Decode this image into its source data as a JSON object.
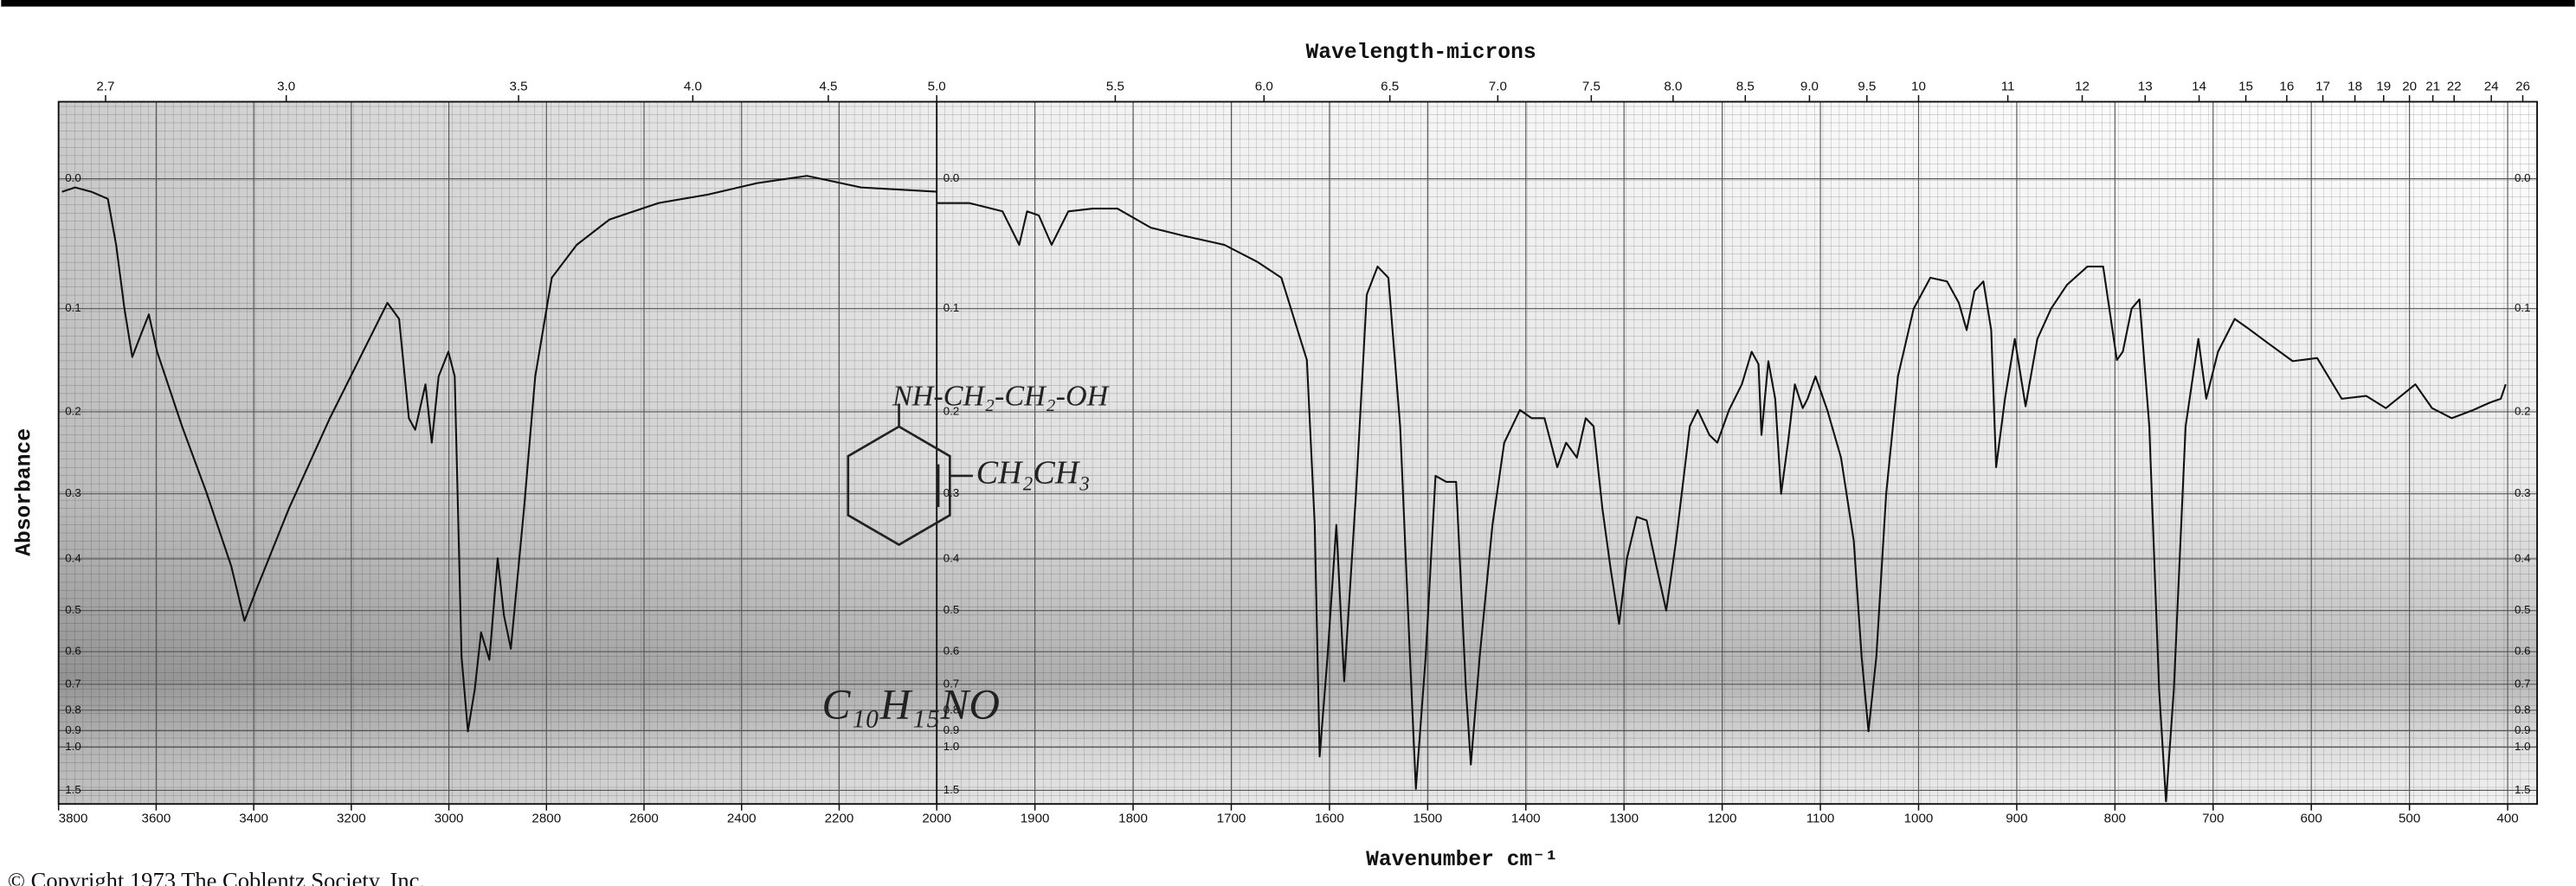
{
  "title": "Wavelength-microns",
  "xlabel": "Wavenumber cm⁻¹",
  "ylabel": "Absorbance",
  "footer": "© Copyright 1973  The Coblentz Society, Inc.",
  "annotations": [
    "NH-CH₂-CH₂-OH",
    "CH₂CH₃",
    "C₁₀H₁₅NO"
  ],
  "chart_data": [
    {
      "type": "line",
      "color": "#111111",
      "yscale": "transmittance",
      "grid": true,
      "xlim": [
        3800,
        2000
      ],
      "xticks": [
        3800,
        3600,
        3400,
        3200,
        3000,
        2800,
        2600,
        2400,
        2200
      ],
      "x2ticks": [
        2.7,
        {
          "value": 3,
          "label": "3.0"
        },
        3.5,
        {
          "value": 4,
          "label": "4.0"
        },
        4.5
      ],
      "ylim": [
        -0.05,
        2
      ],
      "yticks": [
        {
          "value": 0,
          "label": "0.0"
        },
        0.1,
        0.2,
        0.3,
        0.4,
        0.5,
        0.6,
        0.7,
        0.8,
        0.9,
        {
          "value": 1,
          "label": "1.0"
        },
        1.5
      ],
      "x": [
        3793,
        3766,
        3733,
        3699,
        3682,
        3665,
        3649,
        3632,
        3615,
        3598,
        3547,
        3497,
        3446,
        3419,
        3396,
        3328,
        3244,
        3176,
        3126,
        3102,
        3082,
        3069,
        3048,
        3035,
        3021,
        3001,
        2988,
        2974,
        2961,
        2947,
        2934,
        2917,
        2900,
        2887,
        2873,
        2846,
        2823,
        2789,
        2738,
        2671,
        2570,
        2469,
        2368,
        2266,
        2155,
        2000
      ],
      "values": [
        0.009,
        0.006,
        0.009,
        0.014,
        0.048,
        0.1,
        0.144,
        0.124,
        0.105,
        0.139,
        0.216,
        0.298,
        0.413,
        0.523,
        0.46,
        0.321,
        0.207,
        0.139,
        0.095,
        0.109,
        0.207,
        0.22,
        0.171,
        0.235,
        0.163,
        0.139,
        0.163,
        0.614,
        0.903,
        0.719,
        0.55,
        0.623,
        0.399,
        0.511,
        0.592,
        0.321,
        0.163,
        0.074,
        0.048,
        0.029,
        0.017,
        0.011,
        0.003,
        -0.002,
        0.006,
        0.009
      ]
    },
    {
      "type": "line",
      "color": "#111111",
      "yscale": "transmittance",
      "grid": true,
      "xlim": [
        2000,
        370
      ],
      "xticks": [
        2000,
        1900,
        1800,
        1700,
        1600,
        1500,
        1400,
        1300,
        1200,
        1100,
        1000,
        900,
        800,
        700,
        600,
        500,
        400
      ],
      "x2ticks": [
        {
          "value": 5,
          "label": "5.0"
        },
        5.5,
        {
          "value": 6,
          "label": "6.0"
        },
        6.5,
        {
          "value": 7,
          "label": "7.0"
        },
        7.5,
        {
          "value": 8,
          "label": "8.0"
        },
        8.5,
        {
          "value": 9,
          "label": "9.0"
        },
        9.5,
        10,
        11,
        12,
        13,
        14,
        15,
        16,
        17,
        18,
        19,
        20,
        21,
        22,
        24,
        26
      ],
      "ylim": [
        -0.05,
        2
      ],
      "yticks": [
        {
          "value": 0,
          "label": "0.0"
        },
        0.1,
        0.2,
        0.3,
        0.4,
        0.5,
        0.6,
        0.7,
        0.8,
        0.9,
        {
          "value": 1,
          "label": "1.0"
        },
        1.5
      ],
      "x": [
        2000,
        1967,
        1933,
        1916,
        1908,
        1896,
        1883,
        1866,
        1841,
        1816,
        1782,
        1749,
        1707,
        1674,
        1649,
        1623,
        1615,
        1610,
        1602,
        1593,
        1585,
        1573,
        1562,
        1551,
        1540,
        1528,
        1518,
        1512,
        1502,
        1492,
        1481,
        1471,
        1461,
        1456,
        1447,
        1434,
        1422,
        1406,
        1394,
        1381,
        1368,
        1359,
        1348,
        1339,
        1331,
        1322,
        1314,
        1305,
        1297,
        1287,
        1277,
        1267,
        1257,
        1247,
        1233,
        1225,
        1213,
        1205,
        1193,
        1180,
        1170,
        1163,
        1160,
        1153,
        1146,
        1140,
        1133,
        1126,
        1118,
        1113,
        1105,
        1093,
        1079,
        1066,
        1058,
        1051,
        1043,
        1033,
        1021,
        1005,
        988,
        971,
        959,
        951,
        943,
        934,
        926,
        921,
        912,
        902,
        891,
        879,
        865,
        849,
        828,
        812,
        798,
        792,
        783,
        775,
        765,
        755,
        748,
        740,
        728,
        715,
        707,
        695,
        678,
        665,
        644,
        619,
        594,
        569,
        544,
        524,
        494,
        477,
        457,
        435,
        418,
        407,
        402
      ],
      "values": [
        0.017,
        0.017,
        0.023,
        0.048,
        0.023,
        0.026,
        0.048,
        0.023,
        0.021,
        0.021,
        0.035,
        0.041,
        0.048,
        0.061,
        0.074,
        0.147,
        0.345,
        1.07,
        0.614,
        0.345,
        0.69,
        0.3,
        0.088,
        0.065,
        0.074,
        0.216,
        0.614,
        1.47,
        0.614,
        0.276,
        0.284,
        0.284,
        0.719,
        1.14,
        0.614,
        0.345,
        0.235,
        0.198,
        0.207,
        0.207,
        0.265,
        0.235,
        0.253,
        0.207,
        0.216,
        0.321,
        0.413,
        0.53,
        0.399,
        0.333,
        0.338,
        0.413,
        0.5,
        0.37,
        0.216,
        0.198,
        0.226,
        0.235,
        0.198,
        0.171,
        0.139,
        0.151,
        0.226,
        0.148,
        0.186,
        0.3,
        0.235,
        0.171,
        0.196,
        0.186,
        0.163,
        0.198,
        0.253,
        0.37,
        0.614,
        0.903,
        0.614,
        0.3,
        0.163,
        0.1,
        0.074,
        0.077,
        0.095,
        0.119,
        0.085,
        0.077,
        0.119,
        0.265,
        0.186,
        0.127,
        0.194,
        0.127,
        0.1,
        0.08,
        0.065,
        0.065,
        0.147,
        0.139,
        0.1,
        0.092,
        0.216,
        0.719,
        1.85,
        0.719,
        0.216,
        0.127,
        0.186,
        0.139,
        0.109,
        0.117,
        0.131,
        0.148,
        0.145,
        0.186,
        0.183,
        0.196,
        0.171,
        0.196,
        0.207,
        0.198,
        0.19,
        0.186,
        0.171
      ]
    }
  ]
}
